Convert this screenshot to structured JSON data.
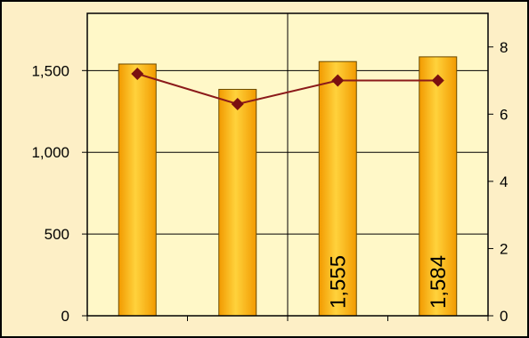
{
  "chart_data": {
    "type": "bar",
    "title": "",
    "xlabel": "",
    "ylabel": "",
    "y2label": "",
    "categories": [
      "",
      "",
      "",
      ""
    ],
    "series": [
      {
        "axis": "left",
        "chart": "bar",
        "values": [
          1540,
          1385,
          1555,
          1584
        ],
        "color": "#ffa500"
      },
      {
        "axis": "right",
        "chart": "line",
        "values": [
          7.2,
          6.3,
          7.0,
          7.0
        ],
        "color": "#8b1a1a"
      }
    ],
    "data_labels": [
      "",
      "",
      "1,555",
      "1,584"
    ],
    "ylim": [
      0,
      1850
    ],
    "y_ticks": [
      0,
      500,
      1000,
      1500
    ],
    "y_tick_labels": [
      "0",
      "500",
      "1,000",
      "1,500"
    ],
    "y2lim": [
      0,
      9
    ],
    "y2_ticks": [
      0,
      2,
      4,
      6,
      8
    ],
    "y2_tick_labels": [
      "0",
      "2",
      "4",
      "6",
      "8"
    ],
    "grid": true,
    "legend": "none",
    "colors": {
      "plot_bg": "#fff8c8",
      "frame_bg": "#fdefc6",
      "bar_light": "#ffd23c",
      "bar_dark": "#f29a00",
      "line": "#8b1a1a",
      "marker": "#7a1010"
    }
  }
}
